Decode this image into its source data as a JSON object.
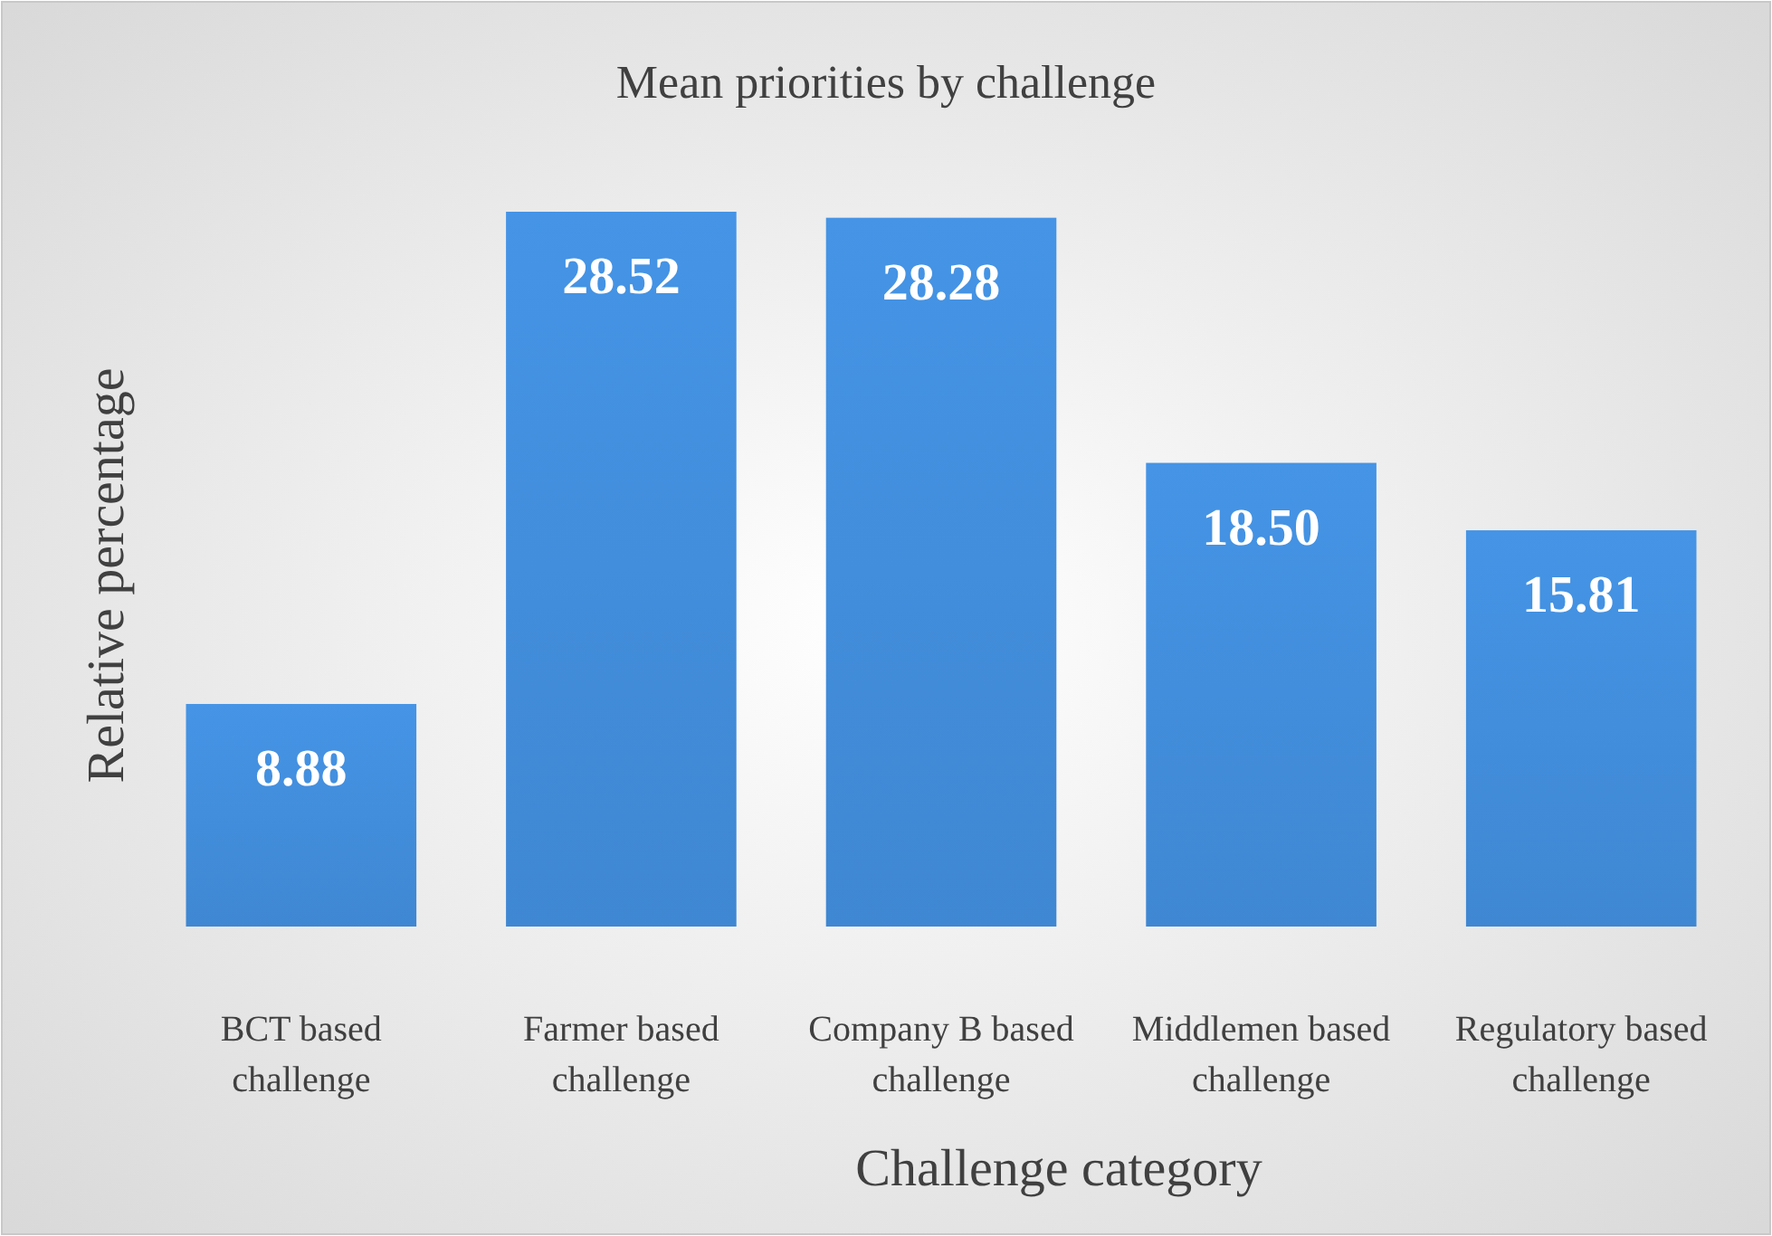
{
  "chart_data": {
    "type": "bar",
    "title": "Mean priorities by challenge",
    "xlabel": "Challenge category",
    "ylabel": "Relative percentage",
    "categories": [
      "BCT based challenge",
      "Farmer based challenge",
      "Company B based challenge",
      "Middlemen based challenge",
      "Regulatory based challenge"
    ],
    "values": [
      8.88,
      28.52,
      28.28,
      18.5,
      15.81
    ],
    "value_labels": [
      "8.88",
      "28.52",
      "28.28",
      "18.50",
      "15.81"
    ],
    "color": "#3f87d2",
    "tick_labels": "x"
  }
}
